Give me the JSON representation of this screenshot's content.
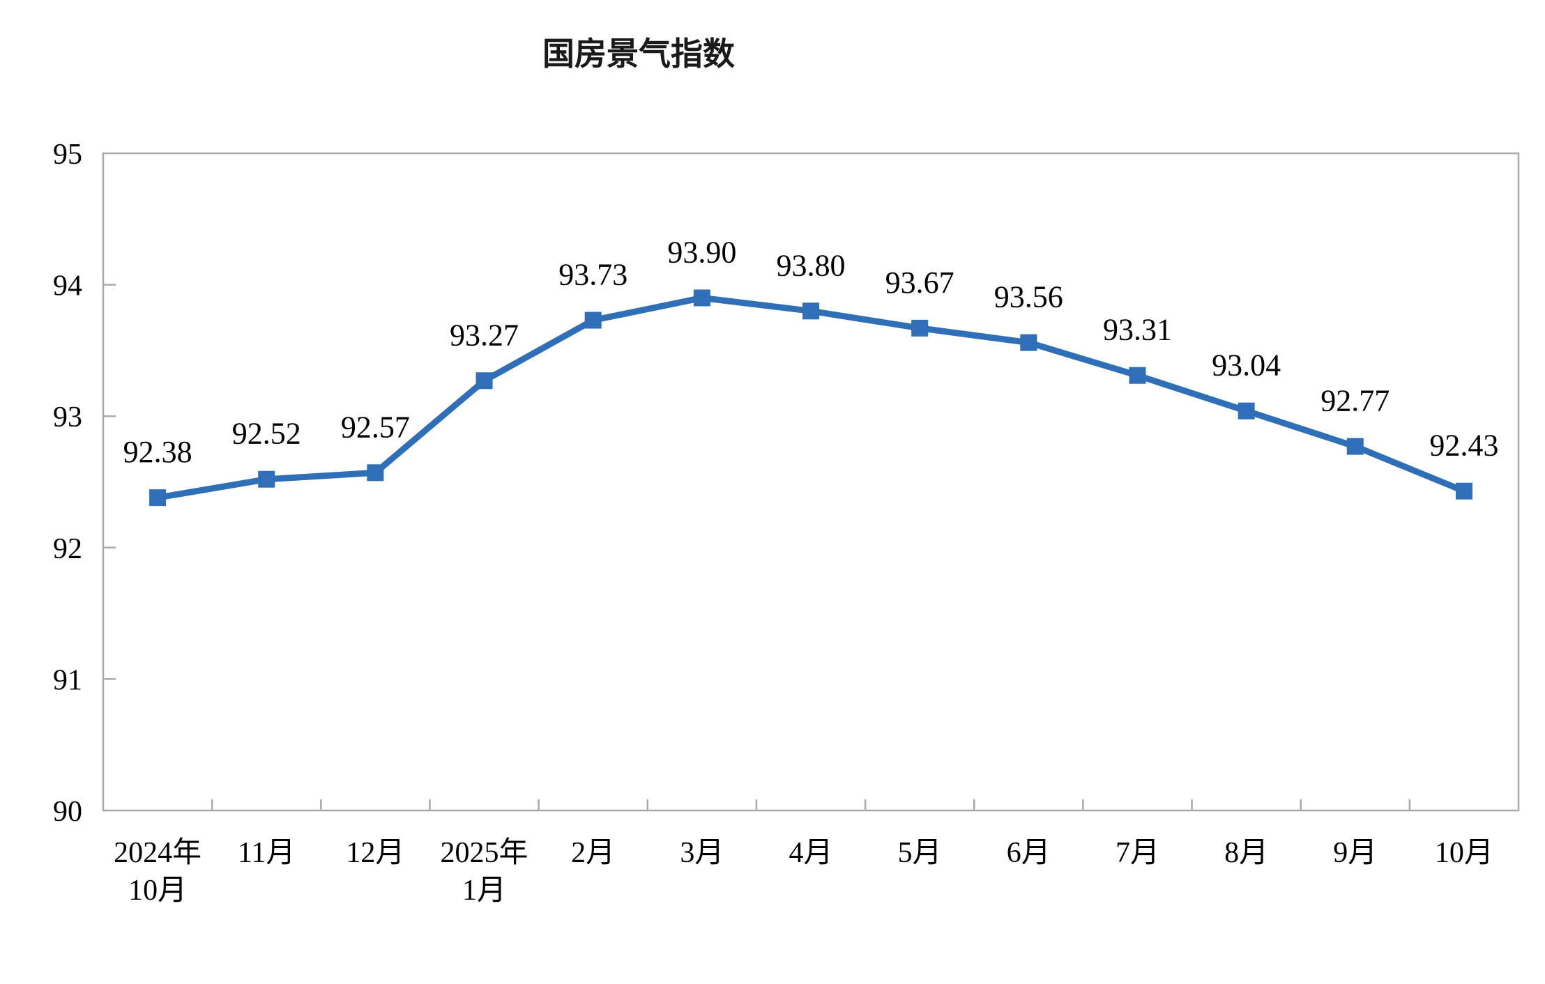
{
  "title": "国房景气指数",
  "chart_data": {
    "type": "line",
    "title": "国房景气指数",
    "categories": [
      "2024年\n10月",
      "11月",
      "12月",
      "2025年\n1月",
      "2月",
      "3月",
      "4月",
      "5月",
      "6月",
      "7月",
      "8月",
      "9月",
      "10月"
    ],
    "series": [
      {
        "name": "国房景气指数",
        "values": [
          92.38,
          92.52,
          92.57,
          93.27,
          93.73,
          93.9,
          93.8,
          93.67,
          93.56,
          93.31,
          93.04,
          92.77,
          92.43
        ]
      }
    ],
    "data_labels": [
      "92.38",
      "92.52",
      "92.57",
      "93.27",
      "93.73",
      "93.90",
      "93.80",
      "93.67",
      "93.56",
      "93.31",
      "93.04",
      "92.77",
      "92.43"
    ],
    "xlabel": "",
    "ylabel": "",
    "ylim": [
      90,
      95
    ],
    "ytick_step": 1,
    "ytick_labels": [
      "90",
      "91",
      "92",
      "93",
      "94",
      "95"
    ],
    "grid": false,
    "legend_position": "none",
    "line_color": "#2e6fb7",
    "marker_shape": "square",
    "axis_color": "#a9a9a9",
    "label_color": "#000000"
  }
}
